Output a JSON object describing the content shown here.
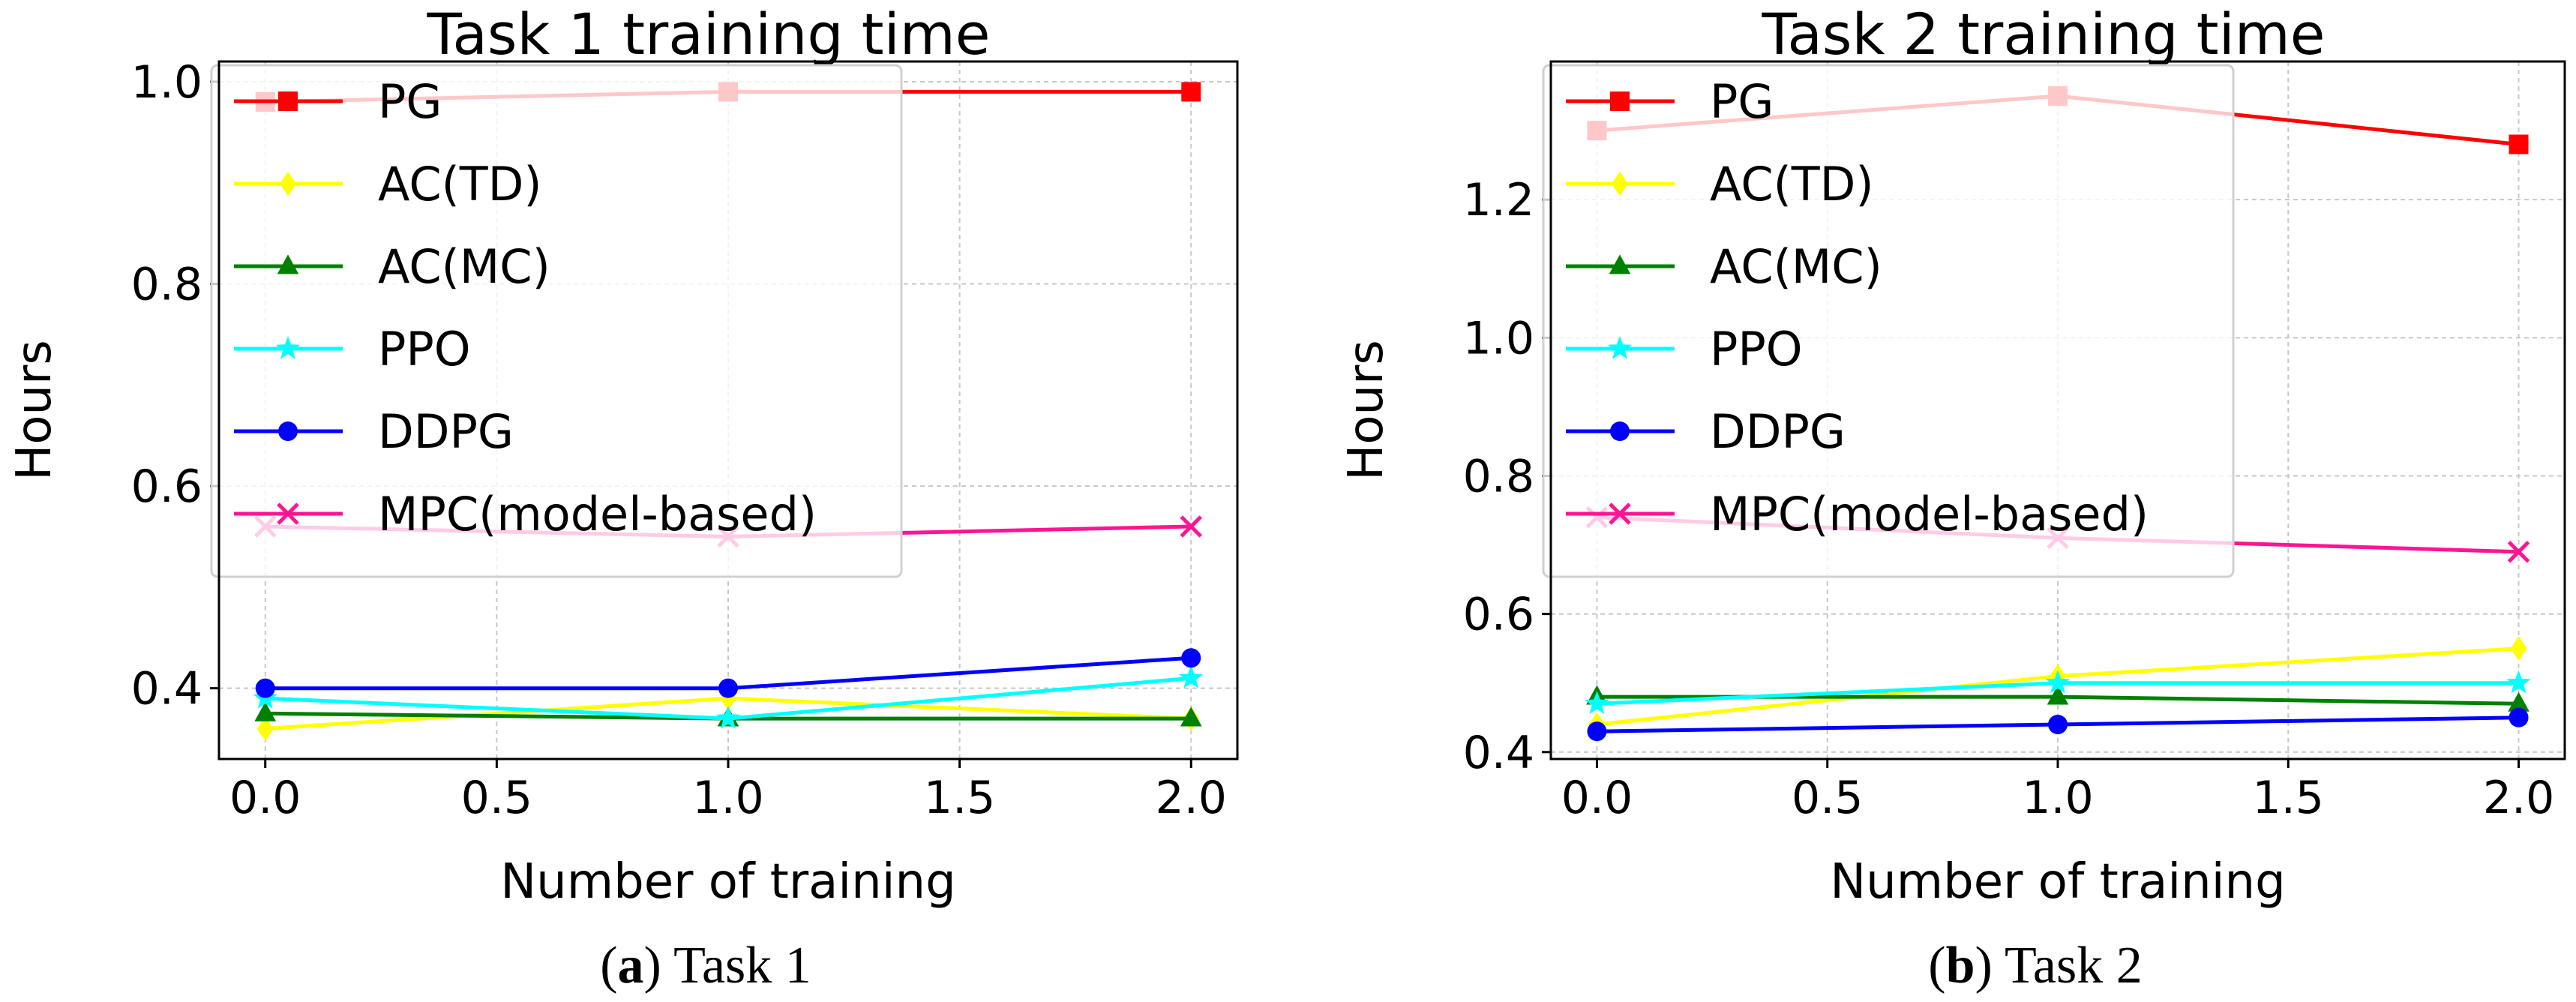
{
  "chart_data": [
    {
      "type": "line",
      "title": "Task 1 training time",
      "xlabel": "Number of training",
      "ylabel": "Hours",
      "caption": {
        "letter": "a",
        "text": "Task 1"
      },
      "x": [
        0.0,
        1.0,
        2.0
      ],
      "xlim": [
        -0.1,
        2.1
      ],
      "ylim": [
        0.33,
        1.02
      ],
      "xticks": [
        0.0,
        0.5,
        1.0,
        1.5,
        2.0
      ],
      "xtick_labels": [
        "0.0",
        "0.5",
        "1.0",
        "1.5",
        "2.0"
      ],
      "yticks": [
        0.4,
        0.6,
        0.8,
        1.0
      ],
      "ytick_labels": [
        "0.4",
        "0.6",
        "0.8",
        "1.0"
      ],
      "grid": true,
      "legend_position": "upper-left",
      "series": [
        {
          "name": "PG",
          "color": "#ff0000",
          "marker": "square",
          "values": [
            0.98,
            0.99,
            0.99
          ]
        },
        {
          "name": "AC(TD)",
          "color": "#ffff00",
          "marker": "diamond",
          "values": [
            0.36,
            0.39,
            0.37
          ]
        },
        {
          "name": "AC(MC)",
          "color": "#008000",
          "marker": "triangle",
          "values": [
            0.375,
            0.37,
            0.37
          ]
        },
        {
          "name": "PPO",
          "color": "#00ffff",
          "marker": "star",
          "values": [
            0.39,
            0.37,
            0.41
          ]
        },
        {
          "name": "DDPG",
          "color": "#0000ff",
          "marker": "circle",
          "values": [
            0.4,
            0.4,
            0.43
          ]
        },
        {
          "name": "MPC(model-based)",
          "color": "#ff1493",
          "marker": "x",
          "values": [
            0.56,
            0.55,
            0.56
          ]
        }
      ]
    },
    {
      "type": "line",
      "title": "Task 2 training time",
      "xlabel": "Number of training",
      "ylabel": "Hours",
      "caption": {
        "letter": "b",
        "text": "Task 2"
      },
      "x": [
        0.0,
        1.0,
        2.0
      ],
      "xlim": [
        -0.1,
        2.1
      ],
      "ylim": [
        0.39,
        1.4
      ],
      "xticks": [
        0.0,
        0.5,
        1.0,
        1.5,
        2.0
      ],
      "xtick_labels": [
        "0.0",
        "0.5",
        "1.0",
        "1.5",
        "2.0"
      ],
      "yticks": [
        0.4,
        0.6,
        0.8,
        1.0,
        1.2
      ],
      "ytick_labels": [
        "0.4",
        "0.6",
        "0.8",
        "1.0",
        "1.2"
      ],
      "grid": true,
      "legend_position": "upper-left",
      "series": [
        {
          "name": "PG",
          "color": "#ff0000",
          "marker": "square",
          "values": [
            1.3,
            1.35,
            1.28
          ]
        },
        {
          "name": "AC(TD)",
          "color": "#ffff00",
          "marker": "diamond",
          "values": [
            0.44,
            0.51,
            0.55
          ]
        },
        {
          "name": "AC(MC)",
          "color": "#008000",
          "marker": "triangle",
          "values": [
            0.48,
            0.48,
            0.47
          ]
        },
        {
          "name": "PPO",
          "color": "#00ffff",
          "marker": "star",
          "values": [
            0.47,
            0.5,
            0.5
          ]
        },
        {
          "name": "DDPG",
          "color": "#0000ff",
          "marker": "circle",
          "values": [
            0.43,
            0.44,
            0.45
          ]
        },
        {
          "name": "MPC(model-based)",
          "color": "#ff1493",
          "marker": "x",
          "values": [
            0.74,
            0.71,
            0.69
          ]
        }
      ]
    }
  ]
}
